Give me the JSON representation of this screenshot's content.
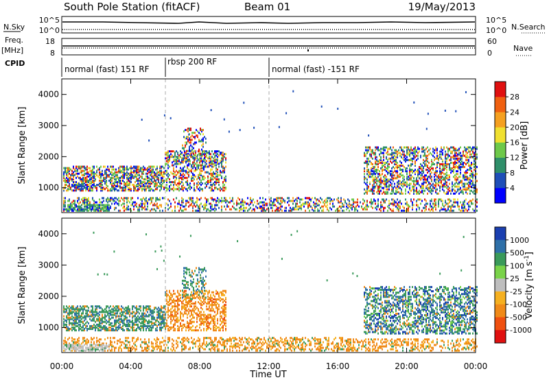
{
  "header": {
    "station": "South Pole Station (fitACF)",
    "beam": "Beam 01",
    "date": "19/May/2013"
  },
  "panels": {
    "nsky": {
      "label": "N.Sky",
      "ticks": [
        "10^5",
        "10^0"
      ],
      "right_label": "N.Search",
      "right_ticks": [
        "10^5",
        "10^0"
      ]
    },
    "freq": {
      "label_top": "Freq.",
      "label_bottom": "[MHz]",
      "ticks": [
        "18",
        "8"
      ],
      "right_label": "Nave",
      "right_ticks": [
        "60",
        "0"
      ]
    },
    "cpid": {
      "label": "CPID",
      "modes": [
        "normal (fast) 151 RF",
        "rbsp 200 RF",
        "normal (fast) -151 RF"
      ]
    }
  },
  "chart_data": [
    {
      "type": "heatmap",
      "name": "power",
      "ylabel": "Slant Range [km]",
      "yticks": [
        "1000",
        "2000",
        "3000",
        "4000"
      ],
      "ylim": [
        200,
        4500
      ],
      "colorbar_label": "Power [dB]",
      "colorbar_ticks": [
        "4",
        "8",
        "12",
        "16",
        "20",
        "24",
        "28"
      ],
      "colors": [
        "#0000ff",
        "#1f4fb8",
        "#2f8f6a",
        "#6ec94a",
        "#f0e030",
        "#f5a020",
        "#f06010",
        "#e01010"
      ]
    },
    {
      "type": "heatmap",
      "name": "velocity",
      "ylabel": "Slant Range [km]",
      "yticks": [
        "1000",
        "2000",
        "3000",
        "4000"
      ],
      "ylim": [
        200,
        4500
      ],
      "colorbar_label": "Velocity [m s",
      "colorbar_label_sup": "-1",
      "colorbar_label_end": "]",
      "colorbar_ticks": [
        "1000",
        "500",
        "100",
        "25",
        "-25",
        "-100",
        "-500",
        "-1000"
      ],
      "colors": [
        "#1a3fb0",
        "#2f70a8",
        "#3a9a5a",
        "#7ad34a",
        "#bebebe",
        "#f5b020",
        "#f08a18",
        "#f05010",
        "#e01010"
      ]
    }
  ],
  "xaxis": {
    "label": "Time UT",
    "ticks": [
      "00:00",
      "04:00",
      "08:00",
      "12:00",
      "16:00",
      "20:00",
      "00:00"
    ]
  }
}
